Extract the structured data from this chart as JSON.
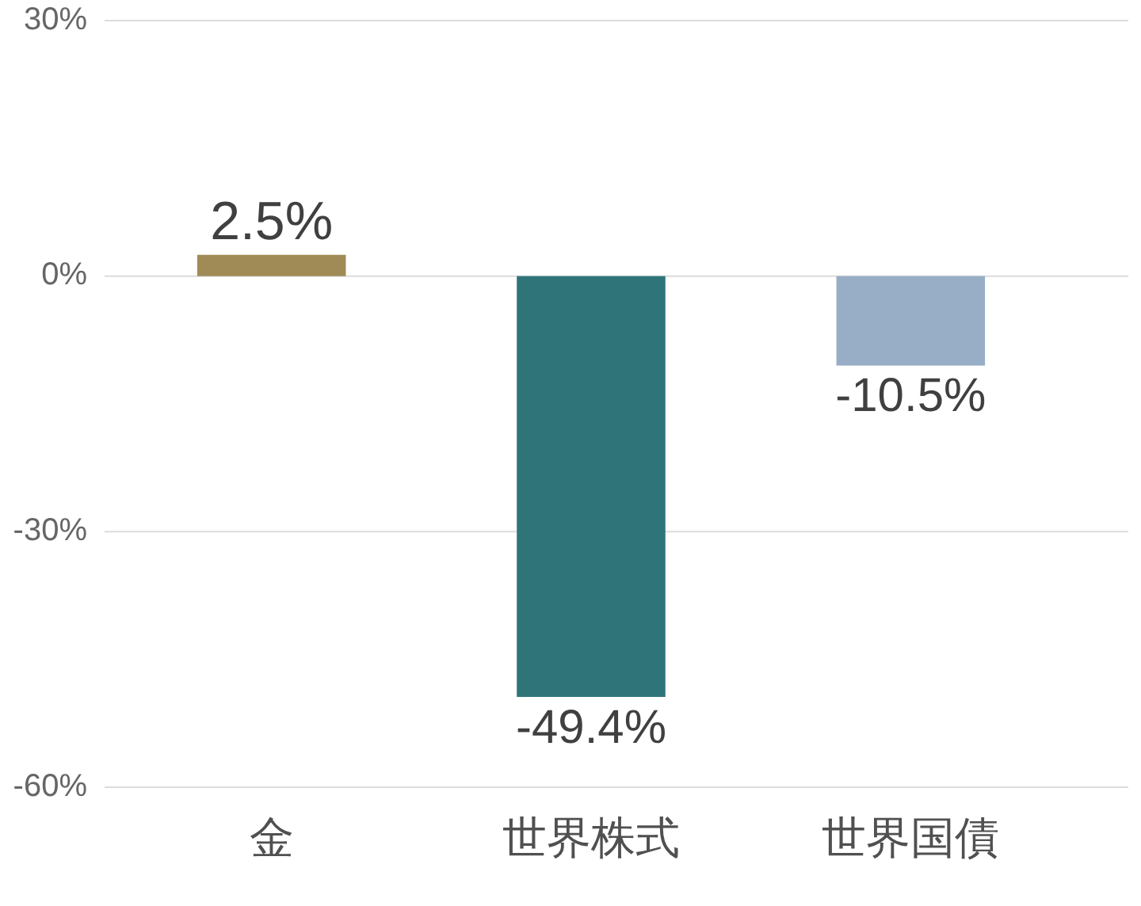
{
  "chart_data": {
    "type": "bar",
    "categories": [
      "金",
      "世界株式",
      "世界国債"
    ],
    "values": [
      2.5,
      -49.4,
      -10.5
    ],
    "colors": [
      "#a08a55",
      "#2e7479",
      "#98adc6"
    ],
    "value_labels": [
      "2.5%",
      "-49.4%",
      "-10.5%"
    ],
    "ylim": [
      -60,
      30
    ],
    "yticks": [
      {
        "value": 30,
        "label": "30%"
      },
      {
        "value": 0,
        "label": "0%"
      },
      {
        "value": -30,
        "label": "-30%"
      },
      {
        "value": -60,
        "label": "-60%"
      }
    ],
    "grid": "y"
  }
}
